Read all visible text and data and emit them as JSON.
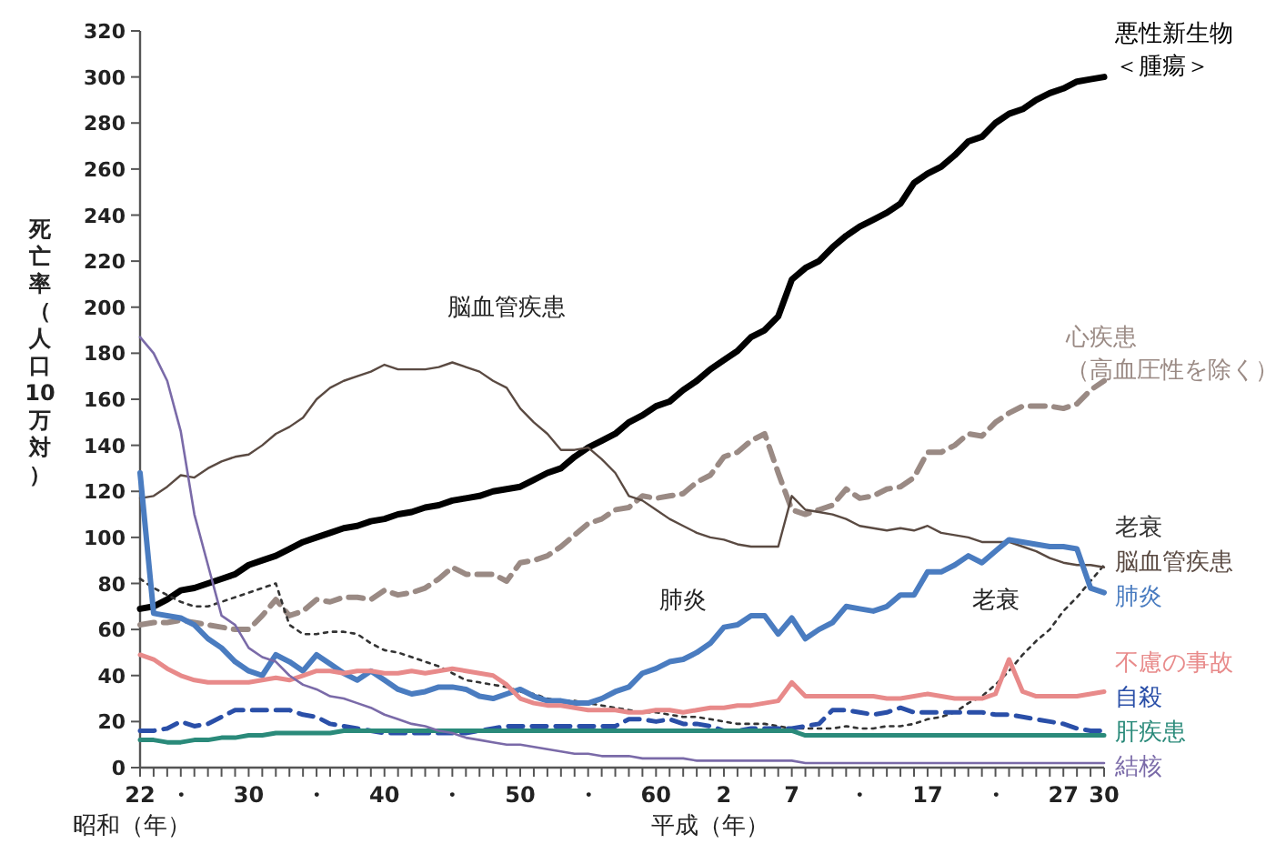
{
  "chart_data": {
    "type": "line",
    "ylabel": "死亡率（人口10万対）",
    "xlabel": "昭和（年）",
    "annotations": [
      "平成（年）",
      "脳血管疾患",
      "肺炎",
      "老衰"
    ],
    "categories": [
      "22",
      null,
      null,
      "・",
      null,
      null,
      null,
      null,
      "30",
      null,
      null,
      null,
      null,
      "・",
      null,
      null,
      null,
      null,
      "40",
      null,
      null,
      null,
      null,
      "・",
      null,
      null,
      null,
      null,
      "50",
      null,
      null,
      null,
      null,
      "・",
      null,
      null,
      null,
      null,
      "60",
      null,
      null,
      null,
      null,
      "2",
      null,
      null,
      null,
      null,
      "7",
      null,
      null,
      null,
      null,
      "・",
      null,
      null,
      null,
      null,
      "17",
      null,
      null,
      null,
      null,
      "・",
      null,
      null,
      null,
      null,
      "27",
      null,
      null,
      "30"
    ],
    "ylim": [
      0,
      320
    ],
    "yticks": [
      0,
      20,
      40,
      60,
      80,
      100,
      120,
      140,
      160,
      180,
      200,
      220,
      240,
      260,
      280,
      300,
      320
    ],
    "grid": false,
    "legend": false,
    "marker": "none",
    "series": [
      {
        "name": "悪性新生物＜腫瘍＞",
        "color": "#000000",
        "line_style": "solid",
        "values": [
          69,
          70,
          73,
          77,
          78,
          80,
          82,
          84,
          88,
          90,
          92,
          95,
          98,
          100,
          102,
          104,
          105,
          107,
          108,
          110,
          111,
          113,
          114,
          116,
          117,
          118,
          120,
          121,
          122,
          125,
          128,
          130,
          135,
          139,
          142,
          145,
          150,
          153,
          157,
          159,
          164,
          168,
          173,
          177,
          181,
          187,
          190,
          196,
          212,
          217,
          220,
          226,
          231,
          235,
          238,
          241,
          245,
          254,
          258,
          261,
          266,
          272,
          274,
          280,
          284,
          286,
          290,
          293,
          295,
          298,
          299,
          300
        ]
      },
      {
        "name": "心疾患（高血圧性を除く）",
        "color": "#9a8a84",
        "line_style": "dashed",
        "values": [
          62,
          63,
          63,
          64,
          63,
          62,
          61,
          60,
          60,
          66,
          73,
          66,
          68,
          73,
          72,
          74,
          74,
          73,
          77,
          75,
          76,
          78,
          82,
          87,
          84,
          84,
          84,
          81,
          89,
          90,
          92,
          96,
          101,
          106,
          108,
          112,
          113,
          118,
          117,
          118,
          119,
          124,
          127,
          135,
          137,
          142,
          145,
          128,
          112,
          110,
          112,
          114,
          121,
          117,
          118,
          121,
          122,
          126,
          137,
          137,
          140,
          145,
          144,
          150,
          154,
          157,
          157,
          157,
          156,
          158,
          164,
          168
        ]
      },
      {
        "name": "老衰",
        "color": "#333333",
        "line_style": "dotted",
        "values": [
          82,
          78,
          75,
          72,
          70,
          70,
          72,
          74,
          76,
          78,
          80,
          62,
          58,
          58,
          59,
          59,
          58,
          54,
          51,
          50,
          48,
          46,
          44,
          41,
          38,
          37,
          36,
          35,
          33,
          32,
          30,
          29,
          29,
          28,
          27,
          26,
          25,
          24,
          24,
          23,
          22,
          22,
          21,
          20,
          19,
          19,
          19,
          18,
          17,
          17,
          17,
          17,
          18,
          17,
          17,
          18,
          18,
          19,
          21,
          22,
          24,
          28,
          31,
          36,
          42,
          49,
          55,
          60,
          68,
          74,
          81,
          88
        ]
      },
      {
        "name": "脳血管疾患",
        "color": "#5a4a42",
        "line_style": "solid",
        "values": [
          117,
          118,
          122,
          127,
          126,
          130,
          133,
          135,
          136,
          140,
          145,
          148,
          152,
          160,
          165,
          168,
          170,
          172,
          175,
          173,
          173,
          173,
          174,
          176,
          174,
          172,
          168,
          165,
          156,
          150,
          145,
          138,
          138,
          139,
          134,
          128,
          118,
          116,
          112,
          108,
          105,
          102,
          100,
          99,
          97,
          96,
          96,
          96,
          118,
          112,
          111,
          110,
          108,
          105,
          104,
          103,
          104,
          103,
          105,
          102,
          101,
          100,
          98,
          98,
          98,
          96,
          94,
          91,
          89,
          88,
          88,
          87
        ]
      },
      {
        "name": "肺炎",
        "color": "#4a7cc0",
        "line_style": "solid",
        "values": [
          128,
          67,
          66,
          65,
          62,
          56,
          52,
          46,
          42,
          40,
          49,
          46,
          42,
          49,
          45,
          41,
          38,
          42,
          38,
          34,
          32,
          33,
          35,
          35,
          34,
          31,
          30,
          32,
          34,
          31,
          29,
          29,
          28,
          28,
          30,
          33,
          35,
          41,
          43,
          46,
          47,
          50,
          54,
          61,
          62,
          66,
          66,
          58,
          65,
          56,
          60,
          63,
          70,
          69,
          68,
          70,
          75,
          75,
          85,
          85,
          88,
          92,
          89,
          94,
          99,
          98,
          97,
          96,
          96,
          95,
          78,
          76
        ]
      },
      {
        "name": "不慮の事故",
        "color": "#e88a8a",
        "line_style": "solid",
        "values": [
          49,
          47,
          43,
          40,
          38,
          37,
          37,
          37,
          37,
          38,
          39,
          38,
          40,
          42,
          42,
          41,
          42,
          42,
          41,
          41,
          42,
          41,
          42,
          43,
          42,
          41,
          40,
          36,
          30,
          28,
          27,
          27,
          26,
          25,
          25,
          25,
          24,
          24,
          25,
          25,
          24,
          25,
          26,
          26,
          27,
          27,
          28,
          29,
          37,
          31,
          31,
          31,
          31,
          31,
          31,
          30,
          30,
          31,
          32,
          31,
          30,
          30,
          30,
          32,
          47,
          33,
          31,
          31,
          31,
          31,
          32,
          33
        ]
      },
      {
        "name": "自殺",
        "color": "#2a4fa8",
        "line_style": "dashed",
        "values": [
          16,
          16,
          17,
          20,
          18,
          19,
          22,
          25,
          25,
          25,
          25,
          25,
          23,
          22,
          19,
          18,
          17,
          16,
          15,
          15,
          15,
          15,
          15,
          15,
          15,
          16,
          17,
          18,
          18,
          18,
          18,
          18,
          18,
          18,
          18,
          18,
          21,
          21,
          20,
          21,
          19,
          19,
          18,
          16,
          16,
          17,
          17,
          17,
          17,
          18,
          19,
          25,
          25,
          24,
          23,
          24,
          26,
          24,
          24,
          24,
          24,
          24,
          24,
          23,
          23,
          22,
          21,
          20,
          19,
          17,
          16,
          16
        ]
      },
      {
        "name": "肝疾患",
        "color": "#2a8a7a",
        "line_style": "solid",
        "values": [
          12,
          12,
          11,
          11,
          12,
          12,
          13,
          13,
          14,
          14,
          15,
          15,
          15,
          15,
          15,
          16,
          16,
          16,
          16,
          16,
          16,
          16,
          16,
          16,
          16,
          16,
          16,
          16,
          16,
          16,
          16,
          16,
          16,
          16,
          16,
          16,
          16,
          16,
          16,
          16,
          16,
          16,
          16,
          16,
          16,
          16,
          16,
          16,
          16,
          14,
          14,
          14,
          14,
          14,
          14,
          14,
          14,
          14,
          14,
          14,
          14,
          14,
          14,
          14,
          14,
          14,
          14,
          14,
          14,
          14,
          14,
          14
        ]
      },
      {
        "name": "結核",
        "color": "#7a6aa8",
        "line_style": "solid",
        "values": [
          187,
          180,
          168,
          146,
          110,
          88,
          66,
          62,
          52,
          48,
          46,
          40,
          36,
          34,
          31,
          30,
          28,
          26,
          23,
          21,
          19,
          18,
          16,
          15,
          13,
          12,
          11,
          10,
          10,
          9,
          8,
          7,
          6,
          6,
          5,
          5,
          5,
          4,
          4,
          4,
          4,
          3,
          3,
          3,
          3,
          3,
          3,
          3,
          3,
          2,
          2,
          2,
          2,
          2,
          2,
          2,
          2,
          2,
          2,
          2,
          2,
          2,
          2,
          2,
          2,
          2,
          2,
          2,
          2,
          2,
          2,
          2
        ]
      }
    ]
  }
}
